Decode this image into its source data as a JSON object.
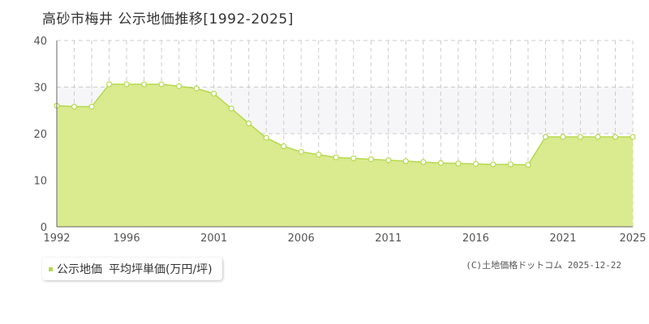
{
  "title": "高砂市梅井 公示地価推移[1992-2025]",
  "legend": {
    "series_label": "公示地価",
    "unit_label": "平均坪単価(万円/坪)"
  },
  "credit": "(C)土地価格ドットコム 2025-12-22",
  "colors": {
    "fill": "#d9ea8f",
    "line": "#b5d94e",
    "band": "#f6f6f8",
    "grid": "#cccccc",
    "axis": "#666666",
    "tick_text": "#555555"
  },
  "chart_data": {
    "type": "area",
    "x": [
      1992,
      1993,
      1994,
      1995,
      1996,
      1997,
      1998,
      1999,
      2000,
      2001,
      2002,
      2003,
      2004,
      2005,
      2006,
      2007,
      2008,
      2009,
      2010,
      2011,
      2012,
      2013,
      2014,
      2015,
      2016,
      2017,
      2018,
      2019,
      2020,
      2021,
      2022,
      2023,
      2024,
      2025
    ],
    "series": [
      {
        "name": "公示地価",
        "values": [
          26.0,
          25.8,
          25.8,
          30.6,
          30.6,
          30.6,
          30.6,
          30.2,
          29.7,
          28.6,
          25.4,
          22.2,
          19.1,
          17.3,
          16.1,
          15.5,
          14.9,
          14.7,
          14.5,
          14.3,
          14.1,
          13.9,
          13.7,
          13.6,
          13.5,
          13.4,
          13.4,
          13.3,
          19.3,
          19.3,
          19.3,
          19.3,
          19.3,
          19.3
        ]
      }
    ],
    "xlim": [
      1992,
      2025
    ],
    "ylim": [
      0,
      40
    ],
    "x_ticks": [
      1992,
      1996,
      2001,
      2006,
      2011,
      2016,
      2021,
      2025
    ],
    "y_ticks": [
      0,
      10,
      20,
      30,
      40
    ],
    "grid": true
  }
}
